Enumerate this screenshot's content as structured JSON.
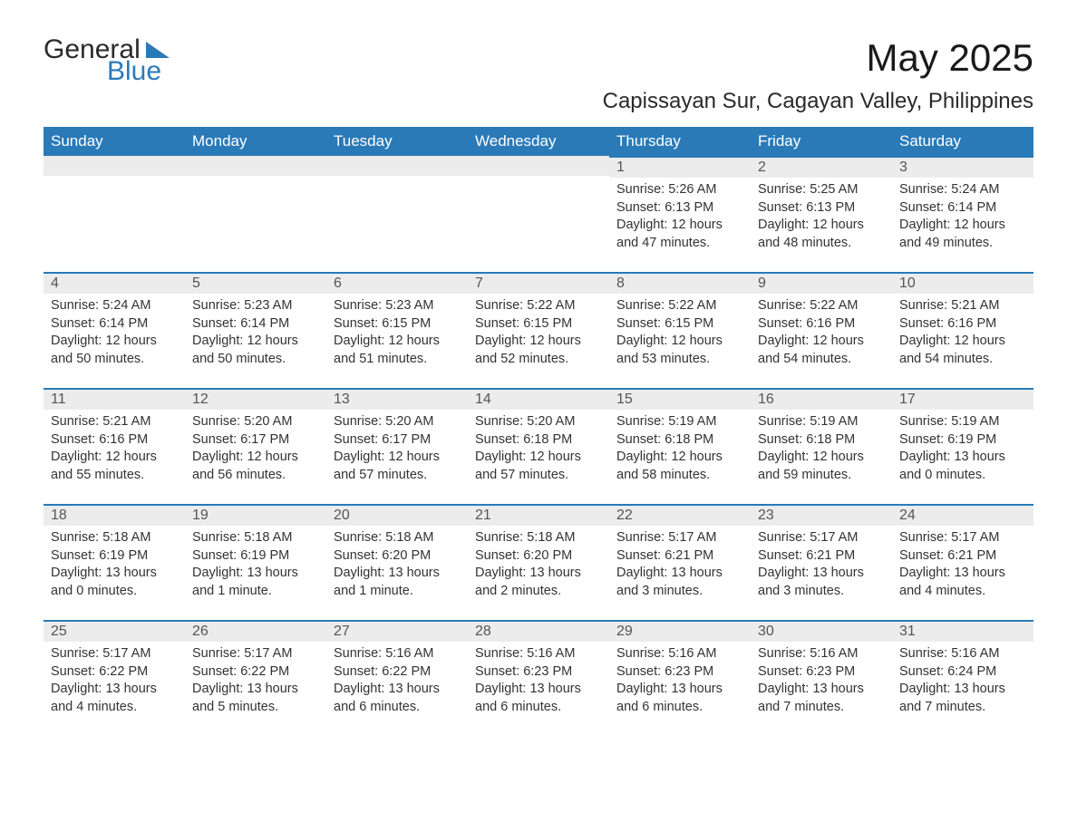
{
  "logo": {
    "word1": "General",
    "word2": "Blue"
  },
  "header": {
    "title": "May 2025",
    "subtitle": "Capissayan Sur, Cagayan Valley, Philippines"
  },
  "colors": {
    "brand_blue": "#2a7ab8",
    "header_text": "#ffffff",
    "row_gray": "#ececec",
    "body_text": "#333333",
    "daynum_text": "#555555",
    "background": "#ffffff"
  },
  "calendar": {
    "type": "table",
    "columns": [
      "Sunday",
      "Monday",
      "Tuesday",
      "Wednesday",
      "Thursday",
      "Friday",
      "Saturday"
    ],
    "cell_font_size_pt": 11,
    "header_font_size_pt": 13,
    "weeks": [
      [
        null,
        null,
        null,
        null,
        {
          "day": "1",
          "sunrise": "Sunrise: 5:26 AM",
          "sunset": "Sunset: 6:13 PM",
          "daylight": "Daylight: 12 hours and 47 minutes."
        },
        {
          "day": "2",
          "sunrise": "Sunrise: 5:25 AM",
          "sunset": "Sunset: 6:13 PM",
          "daylight": "Daylight: 12 hours and 48 minutes."
        },
        {
          "day": "3",
          "sunrise": "Sunrise: 5:24 AM",
          "sunset": "Sunset: 6:14 PM",
          "daylight": "Daylight: 12 hours and 49 minutes."
        }
      ],
      [
        {
          "day": "4",
          "sunrise": "Sunrise: 5:24 AM",
          "sunset": "Sunset: 6:14 PM",
          "daylight": "Daylight: 12 hours and 50 minutes."
        },
        {
          "day": "5",
          "sunrise": "Sunrise: 5:23 AM",
          "sunset": "Sunset: 6:14 PM",
          "daylight": "Daylight: 12 hours and 50 minutes."
        },
        {
          "day": "6",
          "sunrise": "Sunrise: 5:23 AM",
          "sunset": "Sunset: 6:15 PM",
          "daylight": "Daylight: 12 hours and 51 minutes."
        },
        {
          "day": "7",
          "sunrise": "Sunrise: 5:22 AM",
          "sunset": "Sunset: 6:15 PM",
          "daylight": "Daylight: 12 hours and 52 minutes."
        },
        {
          "day": "8",
          "sunrise": "Sunrise: 5:22 AM",
          "sunset": "Sunset: 6:15 PM",
          "daylight": "Daylight: 12 hours and 53 minutes."
        },
        {
          "day": "9",
          "sunrise": "Sunrise: 5:22 AM",
          "sunset": "Sunset: 6:16 PM",
          "daylight": "Daylight: 12 hours and 54 minutes."
        },
        {
          "day": "10",
          "sunrise": "Sunrise: 5:21 AM",
          "sunset": "Sunset: 6:16 PM",
          "daylight": "Daylight: 12 hours and 54 minutes."
        }
      ],
      [
        {
          "day": "11",
          "sunrise": "Sunrise: 5:21 AM",
          "sunset": "Sunset: 6:16 PM",
          "daylight": "Daylight: 12 hours and 55 minutes."
        },
        {
          "day": "12",
          "sunrise": "Sunrise: 5:20 AM",
          "sunset": "Sunset: 6:17 PM",
          "daylight": "Daylight: 12 hours and 56 minutes."
        },
        {
          "day": "13",
          "sunrise": "Sunrise: 5:20 AM",
          "sunset": "Sunset: 6:17 PM",
          "daylight": "Daylight: 12 hours and 57 minutes."
        },
        {
          "day": "14",
          "sunrise": "Sunrise: 5:20 AM",
          "sunset": "Sunset: 6:18 PM",
          "daylight": "Daylight: 12 hours and 57 minutes."
        },
        {
          "day": "15",
          "sunrise": "Sunrise: 5:19 AM",
          "sunset": "Sunset: 6:18 PM",
          "daylight": "Daylight: 12 hours and 58 minutes."
        },
        {
          "day": "16",
          "sunrise": "Sunrise: 5:19 AM",
          "sunset": "Sunset: 6:18 PM",
          "daylight": "Daylight: 12 hours and 59 minutes."
        },
        {
          "day": "17",
          "sunrise": "Sunrise: 5:19 AM",
          "sunset": "Sunset: 6:19 PM",
          "daylight": "Daylight: 13 hours and 0 minutes."
        }
      ],
      [
        {
          "day": "18",
          "sunrise": "Sunrise: 5:18 AM",
          "sunset": "Sunset: 6:19 PM",
          "daylight": "Daylight: 13 hours and 0 minutes."
        },
        {
          "day": "19",
          "sunrise": "Sunrise: 5:18 AM",
          "sunset": "Sunset: 6:19 PM",
          "daylight": "Daylight: 13 hours and 1 minute."
        },
        {
          "day": "20",
          "sunrise": "Sunrise: 5:18 AM",
          "sunset": "Sunset: 6:20 PM",
          "daylight": "Daylight: 13 hours and 1 minute."
        },
        {
          "day": "21",
          "sunrise": "Sunrise: 5:18 AM",
          "sunset": "Sunset: 6:20 PM",
          "daylight": "Daylight: 13 hours and 2 minutes."
        },
        {
          "day": "22",
          "sunrise": "Sunrise: 5:17 AM",
          "sunset": "Sunset: 6:21 PM",
          "daylight": "Daylight: 13 hours and 3 minutes."
        },
        {
          "day": "23",
          "sunrise": "Sunrise: 5:17 AM",
          "sunset": "Sunset: 6:21 PM",
          "daylight": "Daylight: 13 hours and 3 minutes."
        },
        {
          "day": "24",
          "sunrise": "Sunrise: 5:17 AM",
          "sunset": "Sunset: 6:21 PM",
          "daylight": "Daylight: 13 hours and 4 minutes."
        }
      ],
      [
        {
          "day": "25",
          "sunrise": "Sunrise: 5:17 AM",
          "sunset": "Sunset: 6:22 PM",
          "daylight": "Daylight: 13 hours and 4 minutes."
        },
        {
          "day": "26",
          "sunrise": "Sunrise: 5:17 AM",
          "sunset": "Sunset: 6:22 PM",
          "daylight": "Daylight: 13 hours and 5 minutes."
        },
        {
          "day": "27",
          "sunrise": "Sunrise: 5:16 AM",
          "sunset": "Sunset: 6:22 PM",
          "daylight": "Daylight: 13 hours and 6 minutes."
        },
        {
          "day": "28",
          "sunrise": "Sunrise: 5:16 AM",
          "sunset": "Sunset: 6:23 PM",
          "daylight": "Daylight: 13 hours and 6 minutes."
        },
        {
          "day": "29",
          "sunrise": "Sunrise: 5:16 AM",
          "sunset": "Sunset: 6:23 PM",
          "daylight": "Daylight: 13 hours and 6 minutes."
        },
        {
          "day": "30",
          "sunrise": "Sunrise: 5:16 AM",
          "sunset": "Sunset: 6:23 PM",
          "daylight": "Daylight: 13 hours and 7 minutes."
        },
        {
          "day": "31",
          "sunrise": "Sunrise: 5:16 AM",
          "sunset": "Sunset: 6:24 PM",
          "daylight": "Daylight: 13 hours and 7 minutes."
        }
      ]
    ]
  }
}
